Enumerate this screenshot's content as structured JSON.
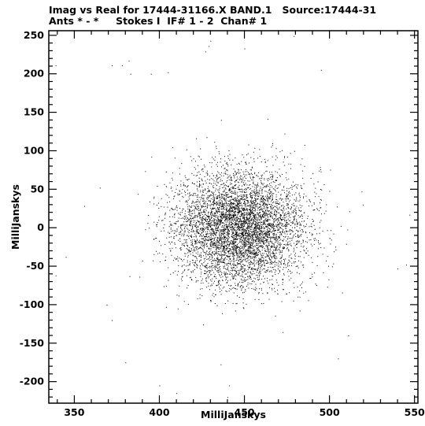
{
  "chart_data": {
    "type": "scatter",
    "title": "Imag vs Real for 17444-31166.X BAND.1   Source:17444-31",
    "subtitle": "Ants * - *     Stokes I  IF# 1 - 2  Chan# 1",
    "xlabel": "MilliJanskys",
    "ylabel": "MilliJanskys",
    "xlim": [
      335,
      552
    ],
    "ylim": [
      -228,
      256
    ],
    "xticks": [
      350,
      400,
      450,
      500,
      550
    ],
    "yticks": [
      -200,
      -150,
      -100,
      -50,
      0,
      50,
      100,
      150,
      200,
      250
    ],
    "distribution": {
      "center_x": 447,
      "center_y": 0,
      "approx_std_x": 19,
      "approx_std_y": 37,
      "approx_points": 60000
    },
    "outliers": [
      {
        "x": 339,
        "y": 211
      },
      {
        "x": 339,
        "y": -62
      },
      {
        "x": 345,
        "y": -38
      },
      {
        "x": 365,
        "y": 52
      },
      {
        "x": 372,
        "y": 211
      },
      {
        "x": 378,
        "y": 211
      },
      {
        "x": 382,
        "y": 217
      },
      {
        "x": 383,
        "y": 200
      },
      {
        "x": 395,
        "y": 200
      },
      {
        "x": 405,
        "y": 202
      },
      {
        "x": 427,
        "y": 229
      },
      {
        "x": 429,
        "y": 236
      },
      {
        "x": 430,
        "y": 243
      },
      {
        "x": 450,
        "y": 233
      },
      {
        "x": 479,
        "y": 249
      },
      {
        "x": 495,
        "y": 205
      },
      {
        "x": 540,
        "y": -53
      },
      {
        "x": 547,
        "y": 17
      },
      {
        "x": 545,
        "y": -48
      },
      {
        "x": 505,
        "y": -170
      },
      {
        "x": 511,
        "y": -140
      },
      {
        "x": 440,
        "y": -220
      },
      {
        "x": 441,
        "y": -205
      },
      {
        "x": 410,
        "y": -215
      },
      {
        "x": 400,
        "y": -205
      },
      {
        "x": 380,
        "y": -175
      },
      {
        "x": 369,
        "y": -100
      },
      {
        "x": 372,
        "y": -120
      }
    ]
  }
}
